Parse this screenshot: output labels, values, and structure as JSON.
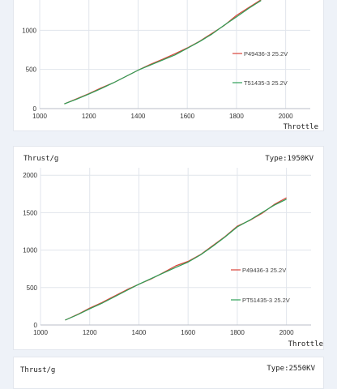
{
  "colors": {
    "series_a": "#d9443a",
    "series_b": "#2ea058",
    "grid": "#e1e5ec",
    "axis": "#b9bec7"
  },
  "chart_data": [
    {
      "type": "line",
      "title": "",
      "xlabel": "Throttle",
      "ylabel": "",
      "xlim": [
        1000,
        2100
      ],
      "ylim": [
        0,
        2100
      ],
      "x_ticks": [
        1000,
        1200,
        1400,
        1600,
        1800,
        2000
      ],
      "y_ticks": [
        0,
        500,
        1000
      ],
      "grid": true,
      "legend": "right",
      "series": [
        {
          "name": "P49436-3 25.2V",
          "color": "#d9443a",
          "x": [
            1100,
            1150,
            1200,
            1250,
            1300,
            1350,
            1400,
            1450,
            1500,
            1550,
            1600,
            1650,
            1700,
            1750,
            1800,
            1850,
            1900
          ],
          "y": [
            60,
            125,
            190,
            265,
            330,
            410,
            490,
            565,
            630,
            700,
            775,
            860,
            960,
            1060,
            1190,
            1290,
            1390
          ]
        },
        {
          "name": "T51435-3 25.2V",
          "color": "#2ea058",
          "x": [
            1100,
            1150,
            1200,
            1250,
            1300,
            1350,
            1400,
            1450,
            1500,
            1550,
            1600,
            1650,
            1700,
            1750,
            1800,
            1850,
            1900
          ],
          "y": [
            60,
            120,
            185,
            255,
            330,
            410,
            490,
            555,
            620,
            685,
            770,
            855,
            950,
            1065,
            1170,
            1280,
            1380
          ]
        }
      ]
    },
    {
      "type": "line",
      "title": "",
      "xlabel": "Throttle",
      "ylabel": "Thrust/g",
      "annotation": "Type:1950KV",
      "xlim": [
        1000,
        2100
      ],
      "ylim": [
        0,
        2100
      ],
      "x_ticks": [
        1000,
        1200,
        1400,
        1600,
        1800,
        2000
      ],
      "y_ticks": [
        0,
        500,
        1000,
        1500,
        2000
      ],
      "grid": true,
      "legend": "right",
      "series": [
        {
          "name": "P49436-3 25.2V",
          "color": "#d9443a",
          "x": [
            1100,
            1150,
            1200,
            1250,
            1300,
            1350,
            1400,
            1450,
            1500,
            1550,
            1600,
            1650,
            1700,
            1750,
            1800,
            1850,
            1900,
            1950,
            2000
          ],
          "y": [
            65,
            140,
            225,
            300,
            385,
            470,
            545,
            615,
            700,
            790,
            850,
            940,
            1060,
            1180,
            1320,
            1395,
            1490,
            1610,
            1700
          ]
        },
        {
          "name": "PT51435-3 25.2V",
          "color": "#2ea058",
          "x": [
            1100,
            1150,
            1200,
            1250,
            1300,
            1350,
            1400,
            1450,
            1500,
            1550,
            1600,
            1650,
            1700,
            1750,
            1800,
            1850,
            1900,
            1950,
            2000
          ],
          "y": [
            65,
            135,
            215,
            290,
            375,
            460,
            545,
            620,
            695,
            770,
            840,
            935,
            1050,
            1175,
            1310,
            1400,
            1500,
            1600,
            1680
          ]
        }
      ]
    }
  ],
  "card3": {
    "ylabel": "Thrust/g",
    "annotation": "Type:2550KV"
  }
}
